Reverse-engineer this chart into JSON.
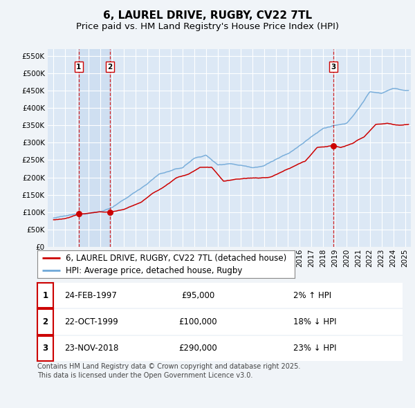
{
  "title": "6, LAUREL DRIVE, RUGBY, CV22 7TL",
  "subtitle": "Price paid vs. HM Land Registry's House Price Index (HPI)",
  "ylim": [
    0,
    570000
  ],
  "yticks": [
    0,
    50000,
    100000,
    150000,
    200000,
    250000,
    300000,
    350000,
    400000,
    450000,
    500000,
    550000
  ],
  "xlim_start": 1994.5,
  "xlim_end": 2025.5,
  "background_color": "#f0f4f8",
  "plot_bg": "#dce8f5",
  "grid_color": "#ffffff",
  "hpi_color": "#6fa8d8",
  "price_color": "#cc0000",
  "dashed_color": "#cc0000",
  "shade_color": "#dce8f5",
  "sale_points": [
    {
      "year": 1997.15,
      "price": 95000,
      "label": "1"
    },
    {
      "year": 1999.81,
      "price": 100000,
      "label": "2"
    },
    {
      "year": 2018.9,
      "price": 290000,
      "label": "3"
    }
  ],
  "hpi_anchors_t": [
    1995.0,
    1996.0,
    1997.0,
    1998.0,
    1999.0,
    2000.0,
    2001.0,
    2002.0,
    2003.0,
    2004.0,
    2005.0,
    2006.0,
    2007.0,
    2008.0,
    2009.0,
    2010.0,
    2011.0,
    2012.0,
    2013.0,
    2014.0,
    2015.0,
    2016.0,
    2017.0,
    2018.0,
    2019.0,
    2020.0,
    2021.0,
    2022.0,
    2023.0,
    2024.0,
    2025.3
  ],
  "hpi_anchors_v": [
    83000,
    87000,
    92000,
    97000,
    102000,
    115000,
    135000,
    158000,
    183000,
    210000,
    220000,
    228000,
    255000,
    265000,
    237000,
    242000,
    238000,
    233000,
    240000,
    258000,
    272000,
    295000,
    320000,
    345000,
    352000,
    355000,
    398000,
    448000,
    445000,
    460000,
    452000
  ],
  "price_anchors_t": [
    1995.0,
    1996.0,
    1997.15,
    1998.5,
    1999.81,
    2001.0,
    2002.5,
    2003.5,
    2004.5,
    2005.5,
    2006.5,
    2007.5,
    2008.5,
    2009.5,
    2010.5,
    2011.5,
    2012.5,
    2013.5,
    2014.5,
    2015.5,
    2016.5,
    2017.5,
    2018.9,
    2019.5,
    2020.5,
    2021.5,
    2022.5,
    2023.5,
    2024.5,
    2025.3
  ],
  "price_anchors_v": [
    78000,
    82000,
    95000,
    100000,
    100000,
    108000,
    130000,
    155000,
    175000,
    200000,
    210000,
    230000,
    230000,
    190000,
    195000,
    198000,
    197000,
    200000,
    215000,
    230000,
    245000,
    285000,
    290000,
    285000,
    295000,
    315000,
    350000,
    355000,
    350000,
    352000
  ],
  "legend_entries": [
    "6, LAUREL DRIVE, RUGBY, CV22 7TL (detached house)",
    "HPI: Average price, detached house, Rugby"
  ],
  "table_rows": [
    {
      "num": "1",
      "date": "24-FEB-1997",
      "price": "£95,000",
      "hpi": "2% ↑ HPI"
    },
    {
      "num": "2",
      "date": "22-OCT-1999",
      "price": "£100,000",
      "hpi": "18% ↓ HPI"
    },
    {
      "num": "3",
      "date": "23-NOV-2018",
      "price": "£290,000",
      "hpi": "23% ↓ HPI"
    }
  ],
  "footnote": "Contains HM Land Registry data © Crown copyright and database right 2025.\nThis data is licensed under the Open Government Licence v3.0.",
  "title_fontsize": 11,
  "subtitle_fontsize": 9.5,
  "tick_fontsize": 7.5,
  "legend_fontsize": 8.5,
  "table_fontsize": 8.5,
  "footnote_fontsize": 7
}
